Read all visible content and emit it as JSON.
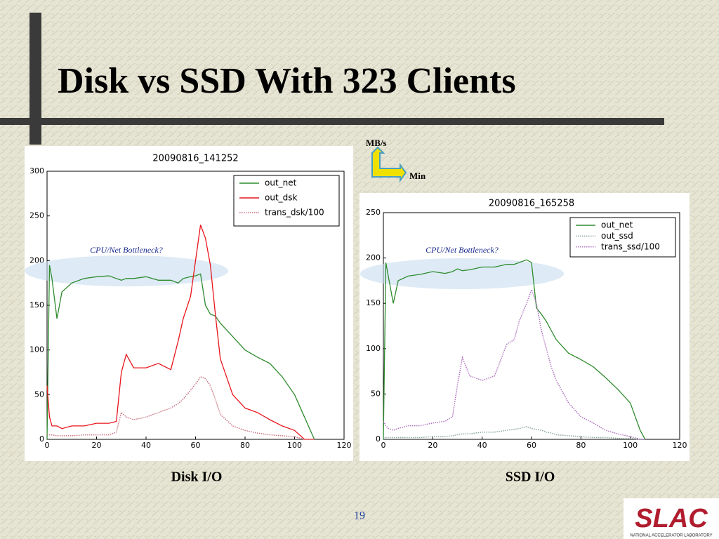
{
  "slide_title": "Disk vs SSD With 323 Clients",
  "axis_hint": {
    "y": "MB/s",
    "x": "Min"
  },
  "captions": [
    "Disk I/O",
    "SSD I/O"
  ],
  "page_number": "19",
  "logo": {
    "name": "SLAC",
    "subtitle": "NATIONAL ACCELERATOR LABORATORY"
  },
  "chart_data": [
    {
      "type": "line",
      "title": "20090816_141252",
      "annotation": "CPU/Net Bottleneck?",
      "x": [
        0,
        1,
        2,
        4,
        6,
        10,
        15,
        20,
        25,
        28,
        30,
        32,
        35,
        40,
        45,
        50,
        53,
        55,
        58,
        60,
        62,
        64,
        66,
        68,
        70,
        75,
        80,
        85,
        90,
        95,
        100,
        104,
        108
      ],
      "series": [
        {
          "name": "out_net",
          "color": "#2e8b2e",
          "style": "solid",
          "values": [
            0,
            195,
            180,
            135,
            165,
            175,
            180,
            182,
            183,
            180,
            178,
            180,
            180,
            182,
            178,
            178,
            175,
            180,
            182,
            183,
            185,
            150,
            140,
            138,
            130,
            115,
            100,
            92,
            85,
            70,
            50,
            25,
            0
          ]
        },
        {
          "name": "out_dsk",
          "color": "#e8141a",
          "style": "solid",
          "values": [
            60,
            25,
            15,
            15,
            12,
            15,
            15,
            18,
            18,
            20,
            75,
            95,
            80,
            80,
            85,
            78,
            110,
            135,
            160,
            200,
            240,
            225,
            195,
            140,
            90,
            50,
            35,
            30,
            22,
            15,
            10,
            0,
            0
          ]
        },
        {
          "name": "trans_dsk/100",
          "color": "#c8707e",
          "style": "dotted",
          "values": [
            5,
            5,
            5,
            4,
            4,
            4,
            5,
            5,
            5,
            8,
            30,
            25,
            22,
            25,
            30,
            35,
            40,
            45,
            55,
            62,
            70,
            68,
            60,
            45,
            28,
            15,
            10,
            7,
            5,
            4,
            3,
            0,
            0
          ]
        }
      ],
      "xlim": [
        0,
        120
      ],
      "xticks": [
        0,
        20,
        40,
        60,
        80,
        100,
        120
      ],
      "ylim": [
        0,
        300
      ],
      "yticks": [
        0,
        50,
        100,
        150,
        200,
        250,
        300
      ],
      "legend": "upper right"
    },
    {
      "type": "line",
      "title": "20090816_165258",
      "annotation": "CPU/Net Bottleneck?",
      "x": [
        0,
        1,
        2,
        4,
        6,
        10,
        15,
        20,
        25,
        28,
        30,
        32,
        35,
        40,
        45,
        50,
        53,
        55,
        58,
        60,
        62,
        64,
        66,
        68,
        70,
        75,
        80,
        85,
        90,
        95,
        100,
        104,
        106
      ],
      "series": [
        {
          "name": "out_net",
          "color": "#2e8b2e",
          "style": "solid",
          "values": [
            0,
            195,
            180,
            150,
            175,
            180,
            182,
            185,
            183,
            185,
            188,
            186,
            187,
            190,
            190,
            193,
            193,
            195,
            198,
            195,
            145,
            138,
            130,
            120,
            110,
            95,
            88,
            80,
            68,
            55,
            40,
            10,
            0
          ]
        },
        {
          "name": "out_ssd",
          "color": "#8aa89a",
          "style": "dotted",
          "values": [
            2,
            2,
            2,
            2,
            2,
            2,
            2,
            3,
            3,
            4,
            5,
            6,
            6,
            8,
            8,
            10,
            11,
            12,
            14,
            12,
            11,
            10,
            8,
            7,
            5,
            4,
            3,
            2,
            2,
            1,
            1,
            0,
            0
          ]
        },
        {
          "name": "trans_ssd/100",
          "color": "#b070c0",
          "style": "dotted",
          "values": [
            20,
            15,
            12,
            10,
            12,
            15,
            15,
            18,
            20,
            25,
            60,
            90,
            70,
            65,
            70,
            105,
            110,
            130,
            150,
            165,
            150,
            120,
            100,
            80,
            65,
            40,
            25,
            18,
            10,
            6,
            3,
            0,
            0
          ]
        }
      ],
      "xlim": [
        0,
        120
      ],
      "xticks": [
        0,
        20,
        40,
        60,
        80,
        100,
        120
      ],
      "ylim": [
        0,
        250
      ],
      "yticks": [
        0,
        50,
        100,
        150,
        200,
        250
      ],
      "legend": "upper right"
    }
  ]
}
